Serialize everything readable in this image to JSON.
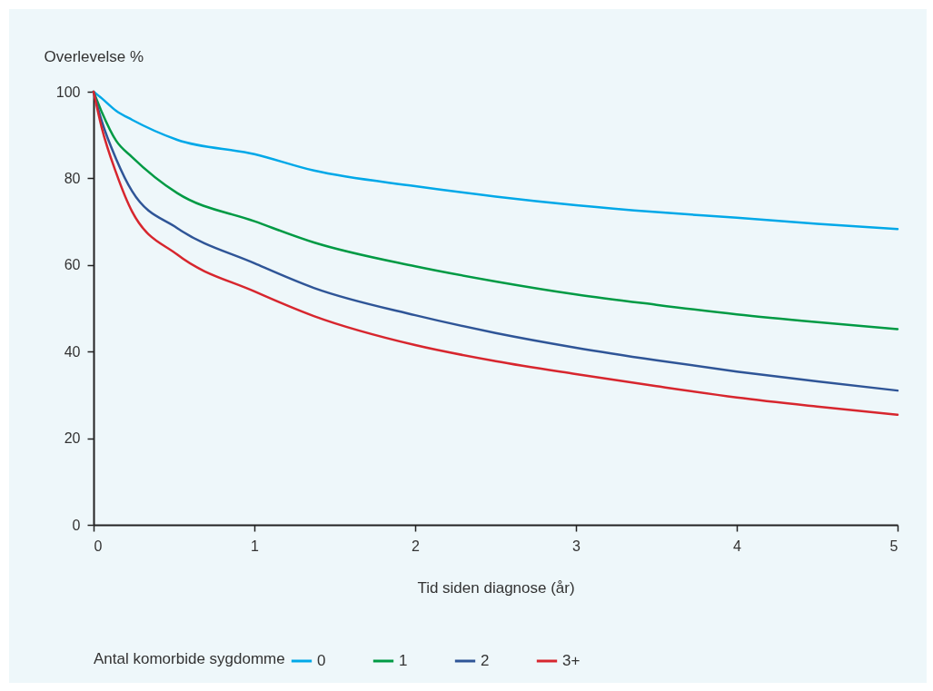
{
  "chart_data": {
    "type": "line",
    "xlabel": "Tid siden diagnose (år)",
    "ylabel": "Overlevelse %",
    "legend_title": "Antal komorbide sygdomme",
    "x": [
      0,
      0.05,
      0.14,
      0.24,
      0.52,
      1,
      1.37,
      2,
      2.5,
      3,
      3.5,
      4,
      4.5,
      5
    ],
    "series": [
      {
        "name": "0",
        "color": "#00a8e8",
        "values": [
          100,
          98.5,
          95.6,
          93.5,
          88.9,
          85.6,
          81.8,
          78.2,
          75.8,
          73.8,
          72.2,
          70.9,
          69.5,
          68.3
        ]
      },
      {
        "name": "1",
        "color": "#009a44",
        "values": [
          100,
          95.4,
          88.7,
          84.9,
          76.6,
          70.1,
          65.2,
          59.7,
          56.2,
          53.2,
          50.8,
          48.6,
          46.8,
          45.2
        ]
      },
      {
        "name": "2",
        "color": "#2f5597",
        "values": [
          100,
          93.3,
          84.5,
          77,
          68.5,
          60.4,
          54.7,
          48.4,
          44.3,
          40.9,
          38,
          35.4,
          33.1,
          31
        ]
      },
      {
        "name": "3+",
        "color": "#d7262e",
        "values": [
          100,
          91.8,
          81.3,
          72.3,
          62.4,
          53.9,
          48.2,
          41.5,
          37.8,
          34.8,
          32,
          29.4,
          27.3,
          25.4
        ]
      }
    ],
    "xlim": [
      0,
      5
    ],
    "xticks": [
      0,
      1,
      2,
      3,
      4,
      5
    ],
    "ylim": [
      0,
      100
    ],
    "yticks": [
      0,
      20,
      40,
      60,
      80,
      100
    ],
    "grid": false,
    "legend": "bottom"
  }
}
